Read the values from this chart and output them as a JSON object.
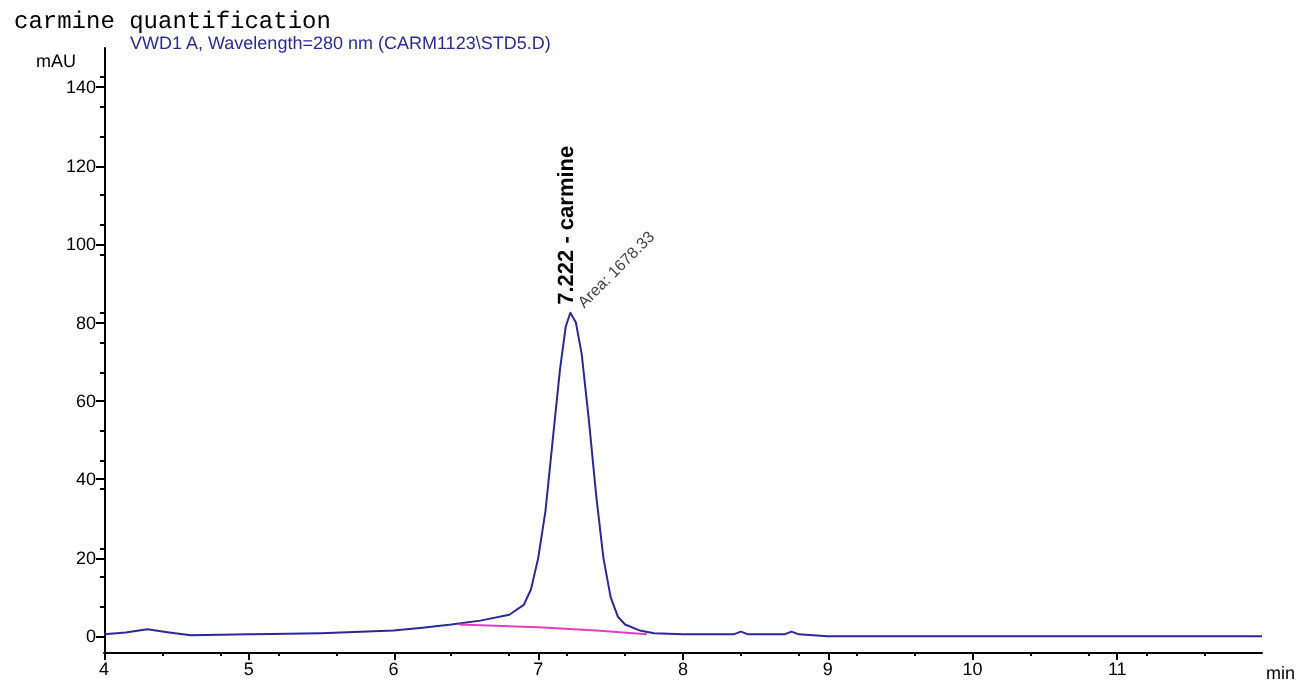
{
  "chart_data": {
    "type": "line",
    "title": "carmine quantification",
    "subtitle": "VWD1 A, Wavelength=280 nm (CARM1123\\STD5.D)",
    "xlabel": "min",
    "ylabel": "mAU",
    "xlim": [
      4,
      12
    ],
    "xticks": [
      4,
      5,
      6,
      7,
      8,
      9,
      10,
      11
    ],
    "ylim": [
      -4,
      150
    ],
    "yticks": [
      0,
      20,
      40,
      60,
      80,
      100,
      120,
      140
    ],
    "series": [
      {
        "color": "#2a2a96",
        "x": [
          4,
          4.15,
          4.3,
          4.45,
          4.6,
          5,
          5.5,
          6,
          6.2,
          6.4,
          6.6,
          6.8,
          6.9,
          6.95,
          7.0,
          7.05,
          7.1,
          7.15,
          7.19,
          7.222,
          7.26,
          7.3,
          7.35,
          7.4,
          7.45,
          7.5,
          7.55,
          7.6,
          7.7,
          7.8,
          8.0,
          8.35,
          8.4,
          8.45,
          8.7,
          8.75,
          8.8,
          9.0,
          10,
          11,
          12
        ],
        "values": [
          0.5,
          1,
          1.8,
          1,
          0.3,
          0.5,
          0.8,
          1.5,
          2.2,
          3,
          4,
          5.5,
          8,
          12,
          20,
          32,
          50,
          68,
          79,
          82.5,
          80,
          72,
          55,
          36,
          20,
          10,
          5,
          3,
          1.5,
          0.8,
          0.5,
          0.5,
          1.2,
          0.5,
          0.5,
          1.2,
          0.5,
          0,
          0,
          0,
          0
        ]
      },
      {
        "color": "#e040c0",
        "x": [
          6.45,
          7.0,
          7.4,
          7.75
        ],
        "values": [
          3,
          2.3,
          1.5,
          0.5
        ]
      }
    ],
    "annotations": [
      {
        "text": "7.222 - carmine",
        "x": 7.222,
        "y": 82.5
      },
      {
        "text": "Area: 1678.33",
        "x": 7.222,
        "y": 82.5
      }
    ],
    "grid": false,
    "marker": "none",
    "line_style": "solid"
  }
}
